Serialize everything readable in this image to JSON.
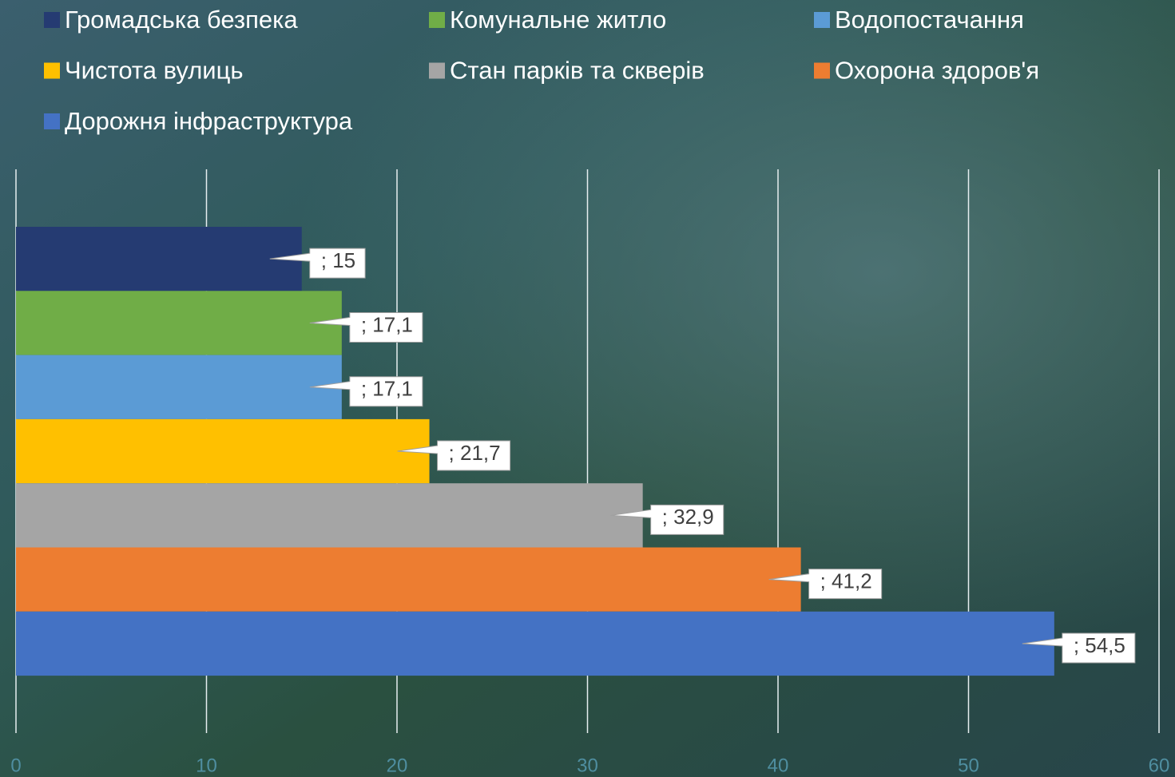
{
  "chart_data": {
    "type": "bar",
    "orientation": "horizontal",
    "series": [
      {
        "name": "Громадська безпека",
        "color": "#253b72",
        "values": [
          15
        ],
        "value_labels": [
          "; 15"
        ]
      },
      {
        "name": "Комунальне житло",
        "color": "#70ad47",
        "values": [
          17.1
        ],
        "value_labels": [
          "; 17,1"
        ]
      },
      {
        "name": "Водопостачання",
        "color": "#5b9bd5",
        "values": [
          17.1
        ],
        "value_labels": [
          "; 17,1"
        ]
      },
      {
        "name": "Чистота вулиць",
        "color": "#ffc000",
        "values": [
          21.7
        ],
        "value_labels": [
          "; 21,7"
        ]
      },
      {
        "name": "Стан парків та скверів",
        "color": "#a5a5a5",
        "values": [
          32.9
        ],
        "value_labels": [
          "; 32,9"
        ]
      },
      {
        "name": "Охорона здоров'я",
        "color": "#ed7d31",
        "values": [
          41.2
        ],
        "value_labels": [
          "; 41,2"
        ]
      },
      {
        "name": "Дорожня інфраструктура",
        "color": "#4472c4",
        "values": [
          54.5
        ],
        "value_labels": [
          "; 54,5"
        ]
      }
    ],
    "xlim": [
      0,
      60
    ],
    "xticks": [
      0,
      10,
      20,
      30,
      40,
      50,
      60
    ],
    "grid": true
  }
}
